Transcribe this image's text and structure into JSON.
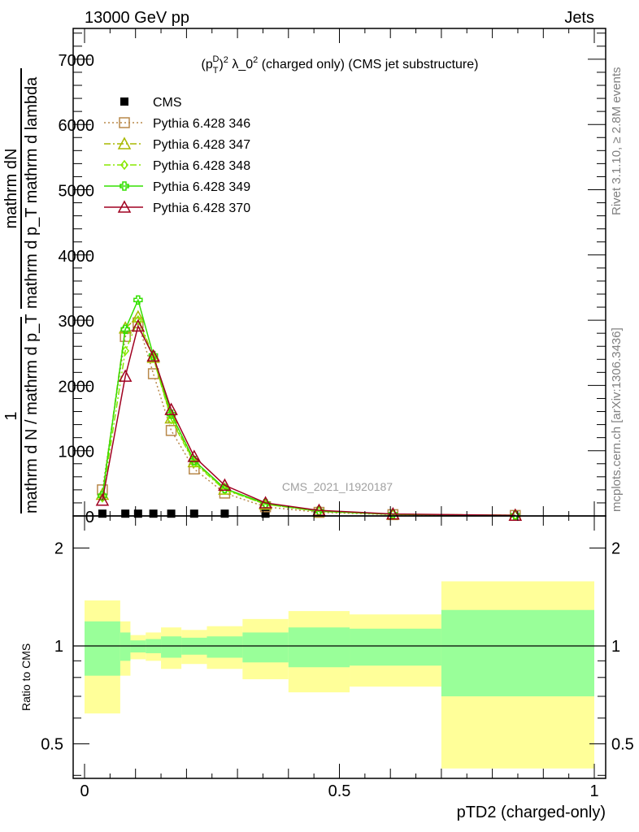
{
  "header": {
    "left": "13000 GeV pp",
    "right": "Jets"
  },
  "side_labels": {
    "rivet": "Rivet 3.1.10, ≥ 2.8M events",
    "mcplots": "mcplots.cern.ch [arXiv:1306.3436]"
  },
  "watermark": "CMS_2021_I1920187",
  "chart_data": [
    {
      "type": "line",
      "title": "(p_T^D)^2 λ_0^2 (charged only) (CMS jet substructure)",
      "title_parts": {
        "pre": "(p",
        "sub": "T",
        "sup1": "D",
        "mid": ")",
        "sup2": "2",
        "post1": " λ_0",
        "sup3": "2",
        "post2": " (charged only) (CMS jet substructure)"
      },
      "ylabel_lines": [
        "mathrm dN",
        "mathrm d p_T mathrm d lambda",
        "1",
        "mathrm d N / mathrm d p_T"
      ],
      "xlim": [
        0,
        1
      ],
      "ylim": [
        0,
        7500
      ],
      "yticks": [
        0,
        1000,
        2000,
        3000,
        4000,
        5000,
        6000,
        7000
      ],
      "ytick_labels": [
        "0",
        "1000",
        "2000",
        "3000",
        "4000",
        "5000",
        "6000",
        "7000"
      ],
      "legend_position": "top-left",
      "x": [
        0.035,
        0.08,
        0.105,
        0.135,
        0.17,
        0.215,
        0.275,
        0.355,
        0.46,
        0.605,
        0.845
      ],
      "series": [
        {
          "name": "CMS",
          "color": "#000000",
          "marker": "filled-square",
          "values": [
            10,
            10,
            10,
            10,
            10,
            10,
            10,
            10,
            null,
            null,
            null
          ]
        },
        {
          "name": "Pythia 6.428 346",
          "color": "#b8884a",
          "marker": "open-square",
          "line": "dotted",
          "values": [
            400,
            2750,
            2960,
            2180,
            1310,
            720,
            350,
            140,
            55,
            20,
            8
          ]
        },
        {
          "name": "Pythia 6.428 347",
          "color": "#a8b800",
          "marker": "open-triangle",
          "line": "dashdot",
          "values": [
            330,
            2880,
            3050,
            2430,
            1500,
            830,
            410,
            180,
            70,
            25,
            10
          ]
        },
        {
          "name": "Pythia 6.428 348",
          "color": "#88e800",
          "marker": "open-diamond",
          "line": "dashdot",
          "values": [
            280,
            2530,
            3000,
            2420,
            1480,
            810,
            400,
            180,
            70,
            25,
            10
          ]
        },
        {
          "name": "Pythia 6.428 349",
          "color": "#33e000",
          "marker": "open-cross",
          "line": "solid",
          "values": [
            310,
            2860,
            3310,
            2460,
            1560,
            850,
            420,
            190,
            75,
            25,
            10
          ]
        },
        {
          "name": "Pythia 6.428 370",
          "color": "#a00020",
          "marker": "open-triangle",
          "line": "solid",
          "values": [
            240,
            2140,
            2910,
            2450,
            1630,
            910,
            470,
            200,
            85,
            30,
            10
          ]
        }
      ]
    },
    {
      "type": "area",
      "ylabel": "Ratio to CMS",
      "xlabel": "pTD2 (charged-only)",
      "yscale": "log",
      "ylim": [
        0.38,
        2.3
      ],
      "yticks": [
        0.5,
        1,
        2
      ],
      "ytick_labels": [
        "0.5",
        "1",
        "2"
      ],
      "xticks": [
        0,
        0.5,
        1
      ],
      "xtick_labels": [
        "0",
        "0.5",
        "1"
      ],
      "bin_edges": [
        0,
        0.07,
        0.09,
        0.12,
        0.15,
        0.19,
        0.24,
        0.31,
        0.4,
        0.52,
        0.7,
        1.0
      ],
      "stat_band": {
        "color": "#99ff99",
        "upper": [
          1.19,
          1.1,
          1.04,
          1.05,
          1.07,
          1.06,
          1.07,
          1.1,
          1.14,
          1.13,
          1.29
        ],
        "lower": [
          0.81,
          0.9,
          0.955,
          0.95,
          0.92,
          0.94,
          0.92,
          0.89,
          0.86,
          0.87,
          0.7
        ]
      },
      "total_band": {
        "color": "#ffff99",
        "upper": [
          1.38,
          1.19,
          1.08,
          1.1,
          1.14,
          1.12,
          1.15,
          1.21,
          1.28,
          1.25,
          1.58
        ],
        "lower": [
          0.62,
          0.81,
          0.91,
          0.9,
          0.85,
          0.88,
          0.85,
          0.79,
          0.72,
          0.75,
          0.42
        ]
      }
    }
  ]
}
